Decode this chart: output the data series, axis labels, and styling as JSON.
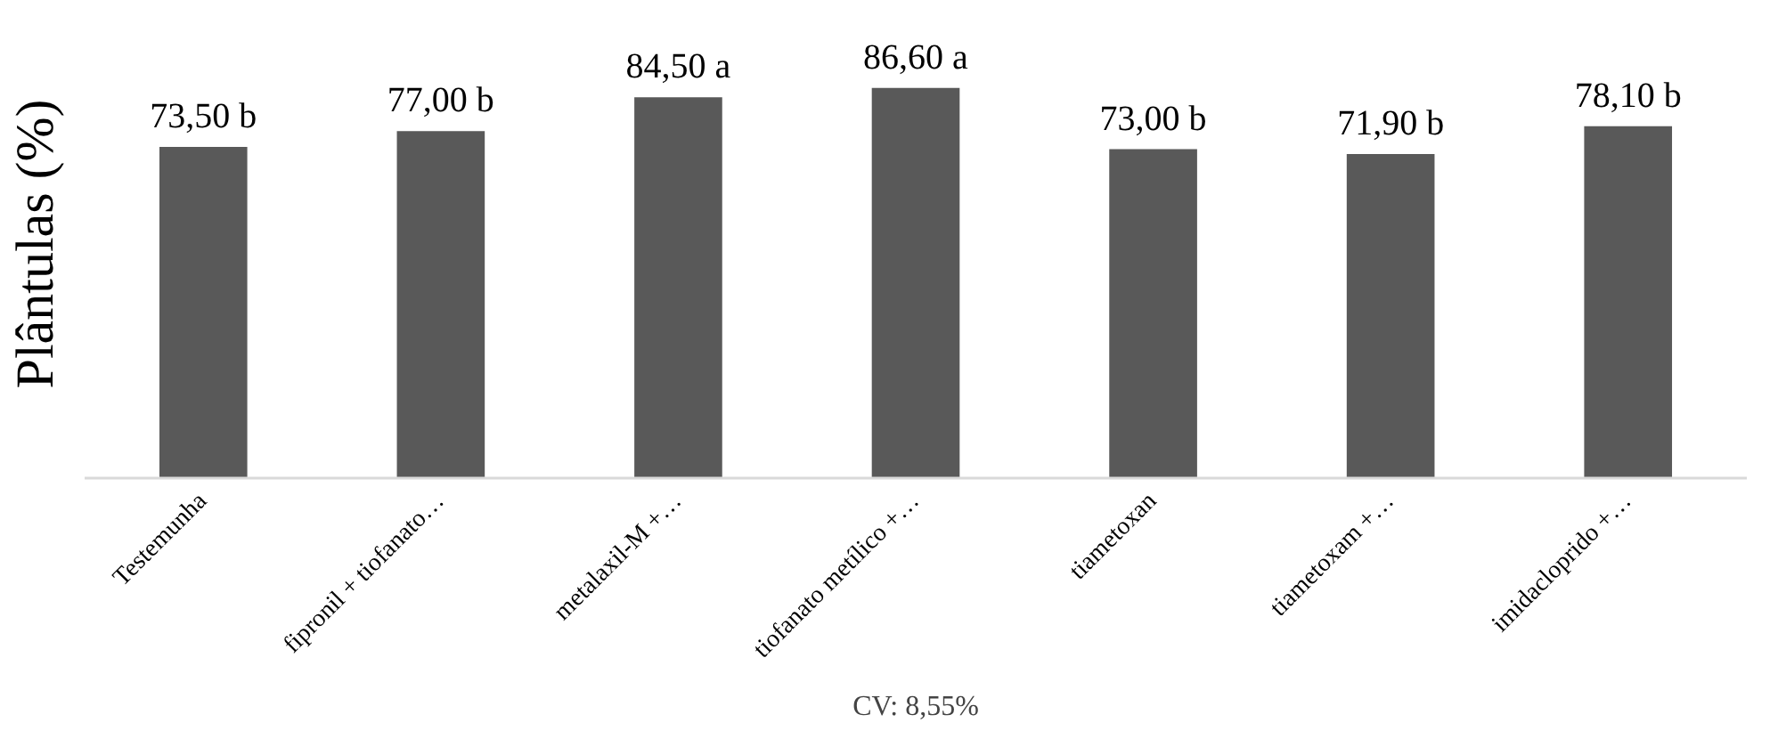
{
  "chart_data": {
    "type": "bar",
    "ylabel": "Plântulas (%)",
    "categories": [
      "Testemunha",
      "fipronil + tiofanato…",
      "metalaxil-M +…",
      "tiofanato metílico +…",
      "tiametoxan",
      "tiametoxam +…",
      "imidacloprido +…"
    ],
    "values": [
      73.5,
      77.0,
      84.5,
      86.6,
      73.0,
      71.9,
      78.1
    ],
    "value_labels": [
      "73,50 b",
      "77,00 b",
      "84,50 a",
      "86,60 a",
      "73,00 b",
      "71,90 b",
      "78,10 b"
    ],
    "color": "#595959",
    "grid": false,
    "tick_labels": "x",
    "annotations": [
      "CV: 8,55%"
    ]
  }
}
